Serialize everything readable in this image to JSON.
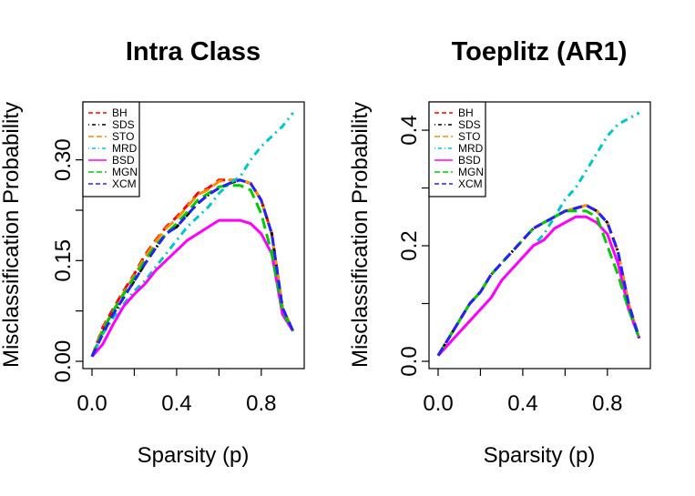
{
  "chart_data": [
    {
      "type": "line",
      "title": "Intra Class",
      "xlabel": "Sparsity (p)",
      "ylabel": "Misclassification Probability",
      "xlim": [
        0.0,
        0.96
      ],
      "ylim": [
        0.0,
        0.37
      ],
      "xticks": [
        0.0,
        0.2,
        0.4,
        0.6,
        0.8
      ],
      "xtick_labels": [
        "0.0",
        "",
        "0.4",
        "",
        "0.8"
      ],
      "yticks": [
        0.0,
        0.075,
        0.15,
        0.225,
        0.3
      ],
      "ytick_labels": [
        "0.00",
        "",
        "0.15",
        "",
        "0.30"
      ],
      "legend_position": "top-left",
      "x": [
        0.0,
        0.05,
        0.1,
        0.15,
        0.2,
        0.25,
        0.3,
        0.35,
        0.4,
        0.45,
        0.5,
        0.55,
        0.6,
        0.65,
        0.7,
        0.75,
        0.8,
        0.85,
        0.9,
        0.95
      ],
      "series": [
        {
          "name": "BH",
          "color": "#ff0000",
          "dash": "10,6",
          "values": [
            0.007,
            0.05,
            0.078,
            0.105,
            0.13,
            0.158,
            0.18,
            0.2,
            0.215,
            0.232,
            0.25,
            0.258,
            0.27,
            0.27,
            0.27,
            0.265,
            0.24,
            0.19,
            0.08,
            0.045
          ]
        },
        {
          "name": "SDS",
          "color": "#000000",
          "dash": "2,5,8,5",
          "values": [
            0.007,
            0.042,
            0.07,
            0.095,
            0.12,
            0.145,
            0.168,
            0.19,
            0.2,
            0.218,
            0.235,
            0.248,
            0.258,
            0.265,
            0.27,
            0.265,
            0.24,
            0.19,
            0.08,
            0.045
          ]
        },
        {
          "name": "STO",
          "color": "#ff8c00",
          "dash": "12,6",
          "values": [
            0.007,
            0.048,
            0.075,
            0.102,
            0.128,
            0.155,
            0.178,
            0.198,
            0.212,
            0.23,
            0.248,
            0.256,
            0.268,
            0.27,
            0.27,
            0.265,
            0.24,
            0.19,
            0.08,
            0.045
          ]
        },
        {
          "name": "MRD",
          "color": "#00c8c8",
          "dash": "2,5,8,5",
          "values": [
            0.007,
            0.04,
            0.065,
            0.085,
            0.105,
            0.12,
            0.14,
            0.16,
            0.18,
            0.2,
            0.215,
            0.23,
            0.25,
            0.265,
            0.275,
            0.3,
            0.32,
            0.335,
            0.35,
            0.37
          ]
        },
        {
          "name": "BSD",
          "color": "#ff00ff",
          "dash": "",
          "values": [
            0.007,
            0.025,
            0.055,
            0.082,
            0.1,
            0.115,
            0.135,
            0.15,
            0.165,
            0.18,
            0.19,
            0.2,
            0.21,
            0.21,
            0.21,
            0.205,
            0.19,
            0.16,
            0.07,
            0.045
          ]
        },
        {
          "name": "MGN",
          "color": "#00cc00",
          "dash": "12,6",
          "values": [
            0.007,
            0.045,
            0.075,
            0.1,
            0.125,
            0.15,
            0.172,
            0.19,
            0.205,
            0.222,
            0.24,
            0.25,
            0.26,
            0.262,
            0.262,
            0.255,
            0.22,
            0.16,
            0.075,
            0.045
          ]
        },
        {
          "name": "XCM",
          "color": "#2222ff",
          "dash": "10,6",
          "values": [
            0.007,
            0.04,
            0.07,
            0.095,
            0.12,
            0.145,
            0.168,
            0.19,
            0.2,
            0.218,
            0.235,
            0.248,
            0.258,
            0.265,
            0.27,
            0.265,
            0.24,
            0.19,
            0.08,
            0.045
          ]
        }
      ]
    },
    {
      "type": "line",
      "title": "Toeplitz (AR1)",
      "xlabel": "Sparsity (p)",
      "ylabel": "Misclassification Probability",
      "xlim": [
        0.0,
        0.96
      ],
      "ylim": [
        0.0,
        0.43
      ],
      "xticks": [
        0.0,
        0.2,
        0.4,
        0.6,
        0.8
      ],
      "xtick_labels": [
        "0.0",
        "",
        "0.4",
        "",
        "0.8"
      ],
      "yticks": [
        0.0,
        0.1,
        0.2,
        0.3,
        0.4
      ],
      "ytick_labels": [
        "0.0",
        "",
        "0.2",
        "",
        "0.4"
      ],
      "legend_position": "top-left",
      "x": [
        0.0,
        0.05,
        0.1,
        0.15,
        0.2,
        0.25,
        0.3,
        0.35,
        0.4,
        0.45,
        0.5,
        0.55,
        0.6,
        0.65,
        0.7,
        0.75,
        0.8,
        0.85,
        0.9,
        0.95
      ],
      "series": [
        {
          "name": "BH",
          "color": "#ff0000",
          "dash": "10,6",
          "values": [
            0.01,
            0.04,
            0.07,
            0.1,
            0.12,
            0.15,
            0.17,
            0.19,
            0.21,
            0.23,
            0.24,
            0.25,
            0.26,
            0.265,
            0.27,
            0.26,
            0.24,
            0.19,
            0.1,
            0.04
          ]
        },
        {
          "name": "SDS",
          "color": "#000000",
          "dash": "2,5,8,5",
          "values": [
            0.01,
            0.04,
            0.07,
            0.1,
            0.12,
            0.15,
            0.17,
            0.19,
            0.21,
            0.23,
            0.24,
            0.25,
            0.26,
            0.265,
            0.27,
            0.26,
            0.24,
            0.19,
            0.1,
            0.04
          ]
        },
        {
          "name": "STO",
          "color": "#ff8c00",
          "dash": "12,6",
          "values": [
            0.01,
            0.04,
            0.07,
            0.1,
            0.12,
            0.15,
            0.17,
            0.19,
            0.21,
            0.23,
            0.24,
            0.25,
            0.26,
            0.265,
            0.27,
            0.26,
            0.24,
            0.19,
            0.1,
            0.04
          ]
        },
        {
          "name": "MRD",
          "color": "#00c8c8",
          "dash": "2,5,8,5",
          "values": [
            0.01,
            0.03,
            0.05,
            0.07,
            0.09,
            0.11,
            0.14,
            0.16,
            0.18,
            0.2,
            0.22,
            0.25,
            0.28,
            0.3,
            0.33,
            0.36,
            0.39,
            0.41,
            0.42,
            0.43
          ]
        },
        {
          "name": "BSD",
          "color": "#ff00ff",
          "dash": "",
          "values": [
            0.01,
            0.03,
            0.05,
            0.07,
            0.09,
            0.11,
            0.14,
            0.16,
            0.18,
            0.2,
            0.21,
            0.23,
            0.24,
            0.25,
            0.25,
            0.24,
            0.22,
            0.17,
            0.09,
            0.04
          ]
        },
        {
          "name": "MGN",
          "color": "#00cc00",
          "dash": "12,6",
          "values": [
            0.01,
            0.04,
            0.07,
            0.1,
            0.12,
            0.15,
            0.17,
            0.19,
            0.21,
            0.23,
            0.24,
            0.25,
            0.26,
            0.26,
            0.26,
            0.25,
            0.2,
            0.15,
            0.09,
            0.04
          ]
        },
        {
          "name": "XCM",
          "color": "#2222ff",
          "dash": "10,6",
          "values": [
            0.01,
            0.04,
            0.07,
            0.1,
            0.12,
            0.15,
            0.17,
            0.19,
            0.21,
            0.23,
            0.24,
            0.25,
            0.26,
            0.265,
            0.27,
            0.26,
            0.24,
            0.19,
            0.1,
            0.04
          ]
        }
      ]
    }
  ]
}
